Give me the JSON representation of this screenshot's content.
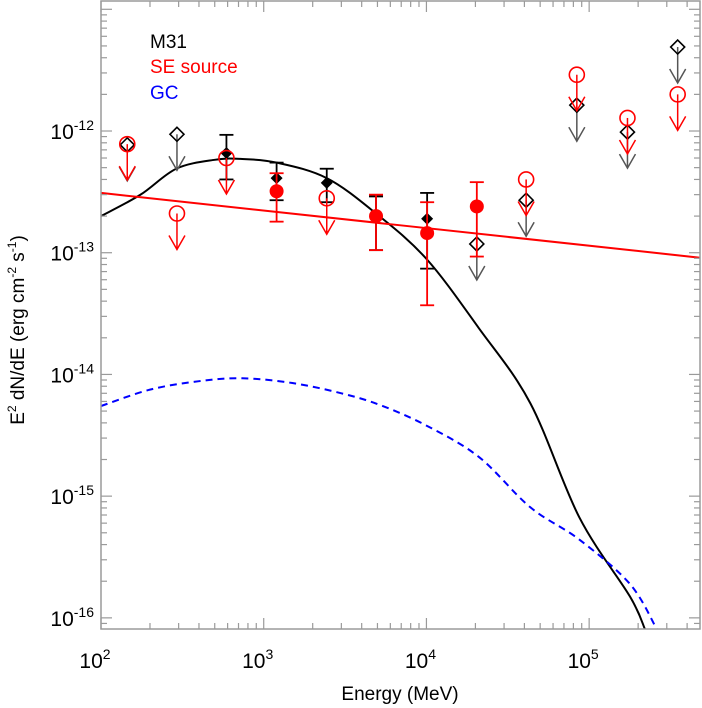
{
  "chart_data": {
    "type": "scatter",
    "xlabel": "Energy (MeV)",
    "ylabel": "E^2 dN/dE (erg cm^-2 s^-1)",
    "xscale": "log",
    "yscale": "log",
    "xlim": [
      100,
      480000
    ],
    "ylim": [
      8.1e-17,
      1.17e-11
    ],
    "x_tick_labels": [
      {
        "value": 100,
        "label": "10^2"
      },
      {
        "value": 1000,
        "label": "10^3"
      },
      {
        "value": 10000,
        "label": "10^4"
      },
      {
        "value": 100000,
        "label": "10^5"
      }
    ],
    "y_tick_labels": [
      {
        "value": 1e-12,
        "label": "10^-12"
      },
      {
        "value": 1e-13,
        "label": "10^-13"
      },
      {
        "value": 1e-14,
        "label": "10^-14"
      },
      {
        "value": 1e-15,
        "label": "10^-15"
      },
      {
        "value": 1e-16,
        "label": "10^-16"
      }
    ],
    "grid": false,
    "legend_position": "top-left",
    "legend": [
      {
        "label": "M31",
        "color": "#000000"
      },
      {
        "label": "SE source",
        "color": "#ff0000"
      },
      {
        "label": "GC",
        "color": "#0000ff"
      }
    ],
    "series": [
      {
        "name": "M31",
        "color": "#000000",
        "marker": "diamond",
        "detections": [
          {
            "x": 590,
            "y": 6.6e-13,
            "ylo": 4e-13,
            "yhi": 9.3e-13
          },
          {
            "x": 1200,
            "y": 4.1e-13,
            "ylo": 2.7e-13,
            "yhi": 5.5e-13
          },
          {
            "x": 2440,
            "y": 3.75e-13,
            "ylo": 2.6e-13,
            "yhi": 4.9e-13
          },
          {
            "x": 4900,
            "y": 2e-13,
            "ylo": 1.05e-13,
            "yhi": 2.9e-13
          },
          {
            "x": 10100,
            "y": 1.9e-13,
            "ylo": 7.4e-14,
            "yhi": 3.1e-13
          }
        ],
        "upper_limits": [
          {
            "x": 145,
            "y": 7.7e-13
          },
          {
            "x": 293,
            "y": 9.4e-13
          },
          {
            "x": 20400,
            "y": 1.18e-13
          },
          {
            "x": 41000,
            "y": 2.7e-13
          },
          {
            "x": 84000,
            "y": 1.63e-12
          },
          {
            "x": 172000,
            "y": 9.8e-13
          },
          {
            "x": 350000,
            "y": 4.9e-12
          }
        ]
      },
      {
        "name": "SE source",
        "color": "#ff0000",
        "marker": "circle",
        "detections": [
          {
            "x": 1200,
            "y": 3.2e-13,
            "ylo": 1.8e-13,
            "yhi": 4.5e-13
          },
          {
            "x": 4900,
            "y": 2e-13,
            "ylo": 1.05e-13,
            "yhi": 3e-13
          },
          {
            "x": 10100,
            "y": 1.45e-13,
            "ylo": 3.7e-14,
            "yhi": 2.6e-13
          },
          {
            "x": 20400,
            "y": 2.4e-13,
            "ylo": 9.3e-14,
            "yhi": 3.8e-13
          }
        ],
        "upper_limits": [
          {
            "x": 145,
            "y": 7.8e-13
          },
          {
            "x": 293,
            "y": 2.1e-13
          },
          {
            "x": 590,
            "y": 6e-13
          },
          {
            "x": 2440,
            "y": 2.8e-13
          },
          {
            "x": 41000,
            "y": 4e-13
          },
          {
            "x": 84000,
            "y": 2.9e-12
          },
          {
            "x": 172000,
            "y": 1.28e-12
          },
          {
            "x": 350000,
            "y": 2e-12
          }
        ]
      }
    ],
    "models": [
      {
        "name": "M31",
        "color": "#000000",
        "style": "solid",
        "points": [
          [
            100,
            2e-13
          ],
          [
            175,
            3e-13
          ],
          [
            290,
            4.9e-13
          ],
          [
            500,
            5.8e-13
          ],
          [
            720,
            5.9e-13
          ],
          [
            1200,
            5.5e-13
          ],
          [
            2440,
            4.1e-13
          ],
          [
            4900,
            2.1e-13
          ],
          [
            10000,
            8.9e-14
          ],
          [
            21000,
            2.4e-14
          ],
          [
            43500,
            5.8e-15
          ],
          [
            87000,
            6.7e-16
          ],
          [
            178000,
            1.5e-16
          ],
          [
            220000,
            8.1e-17
          ]
        ]
      },
      {
        "name": "SE source",
        "color": "#ff0000",
        "style": "solid",
        "points": [
          [
            100,
            3.1e-13
          ],
          [
            480000,
            9.1e-14
          ]
        ]
      },
      {
        "name": "GC",
        "color": "#0000ff",
        "style": "dashed",
        "points": [
          [
            100,
            5.5e-15
          ],
          [
            200,
            7.5e-15
          ],
          [
            400,
            8.8e-15
          ],
          [
            740,
            9.3e-15
          ],
          [
            1500,
            8.5e-15
          ],
          [
            3000,
            7e-15
          ],
          [
            5200,
            5.6e-15
          ],
          [
            10000,
            3.8e-15
          ],
          [
            21000,
            2.1e-15
          ],
          [
            43500,
            8.1e-16
          ],
          [
            87000,
            4.4e-16
          ],
          [
            178000,
            1.9e-16
          ],
          [
            260000,
            8.1e-17
          ]
        ]
      }
    ]
  }
}
